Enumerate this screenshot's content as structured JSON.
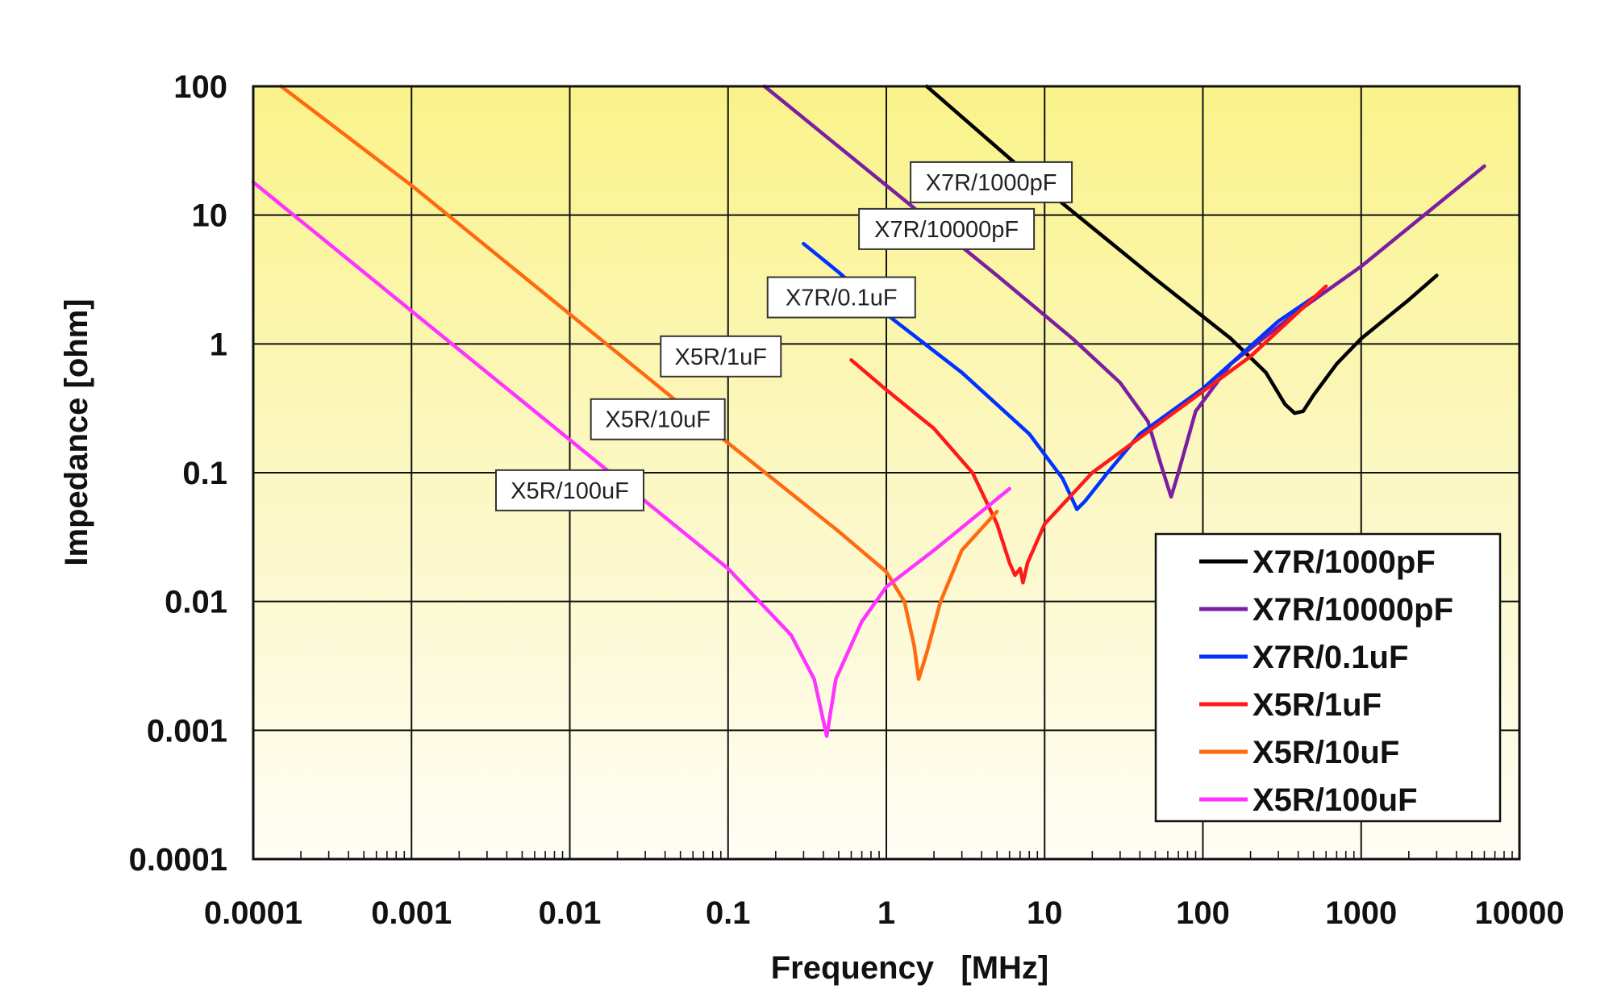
{
  "chart_data": {
    "type": "line",
    "scale": {
      "x": "log",
      "y": "log"
    },
    "xlabel": "Frequency   [MHz]",
    "ylabel": "Impedance [ohm]",
    "xlim": [
      0.0001,
      10000
    ],
    "ylim": [
      0.0001,
      100
    ],
    "x_ticks": [
      "0.0001",
      "0.001",
      "0.01",
      "0.1",
      "1",
      "10",
      "100",
      "1000",
      "10000"
    ],
    "y_ticks": [
      "0.0001",
      "0.001",
      "0.01",
      "0.1",
      "1",
      "10",
      "100"
    ],
    "grid": true,
    "legend_position": "lower-right",
    "series": [
      {
        "name": "X7R/1000pF",
        "color": "#000000",
        "points": [
          [
            1.8,
            100
          ],
          [
            10,
            16
          ],
          [
            50,
            3.2
          ],
          [
            150,
            1.1
          ],
          [
            250,
            0.6
          ],
          [
            330,
            0.34
          ],
          [
            380,
            0.29
          ],
          [
            430,
            0.3
          ],
          [
            500,
            0.4
          ],
          [
            700,
            0.7
          ],
          [
            1000,
            1.1
          ],
          [
            2000,
            2.2
          ],
          [
            3000,
            3.4
          ]
        ]
      },
      {
        "name": "X7R/10000pF",
        "color": "#7b1fa2",
        "points": [
          [
            0.17,
            100
          ],
          [
            1,
            17
          ],
          [
            5,
            3.4
          ],
          [
            15,
            1.1
          ],
          [
            30,
            0.5
          ],
          [
            45,
            0.25
          ],
          [
            55,
            0.11
          ],
          [
            63,
            0.065
          ],
          [
            70,
            0.1
          ],
          [
            90,
            0.3
          ],
          [
            150,
            0.7
          ],
          [
            400,
            1.8
          ],
          [
            1000,
            4
          ],
          [
            3000,
            12
          ],
          [
            6000,
            24
          ]
        ]
      },
      {
        "name": "X7R/0.1uF",
        "color": "#0033ff",
        "points": [
          [
            0.3,
            6
          ],
          [
            0.5,
            3.6
          ],
          [
            1,
            1.7
          ],
          [
            3,
            0.6
          ],
          [
            8,
            0.2
          ],
          [
            13,
            0.09
          ],
          [
            16,
            0.052
          ],
          [
            18,
            0.06
          ],
          [
            25,
            0.1
          ],
          [
            40,
            0.2
          ],
          [
            100,
            0.45
          ],
          [
            300,
            1.5
          ],
          [
            500,
            2.3
          ]
        ]
      },
      {
        "name": "X5R/1uF",
        "color": "#ff1a1a",
        "points": [
          [
            0.6,
            0.75
          ],
          [
            1,
            0.44
          ],
          [
            2,
            0.22
          ],
          [
            3.5,
            0.1
          ],
          [
            5,
            0.04
          ],
          [
            6,
            0.02
          ],
          [
            6.5,
            0.016
          ],
          [
            7,
            0.018
          ],
          [
            7.3,
            0.014
          ],
          [
            7.8,
            0.02
          ],
          [
            10,
            0.04
          ],
          [
            20,
            0.1
          ],
          [
            60,
            0.27
          ],
          [
            200,
            0.8
          ],
          [
            600,
            2.8
          ]
        ]
      },
      {
        "name": "X5R/10uF",
        "color": "#ff6a10",
        "points": [
          [
            0.00015,
            100
          ],
          [
            0.001,
            17
          ],
          [
            0.01,
            1.7
          ],
          [
            0.1,
            0.17
          ],
          [
            0.5,
            0.035
          ],
          [
            1,
            0.017
          ],
          [
            1.3,
            0.01
          ],
          [
            1.5,
            0.0045
          ],
          [
            1.6,
            0.0025
          ],
          [
            1.8,
            0.004
          ],
          [
            2.2,
            0.01
          ],
          [
            3,
            0.025
          ],
          [
            5,
            0.05
          ]
        ]
      },
      {
        "name": "X5R/100uF",
        "color": "#ff33ff",
        "points": [
          [
            0.0001,
            18
          ],
          [
            0.001,
            1.8
          ],
          [
            0.01,
            0.18
          ],
          [
            0.1,
            0.018
          ],
          [
            0.25,
            0.0055
          ],
          [
            0.35,
            0.0025
          ],
          [
            0.42,
            0.0009
          ],
          [
            0.48,
            0.0025
          ],
          [
            0.7,
            0.007
          ],
          [
            1,
            0.013
          ],
          [
            2,
            0.025
          ],
          [
            6,
            0.075
          ]
        ]
      }
    ],
    "annotations": [
      {
        "text": "X7R/1000pF",
        "series": 0,
        "x": 4.6,
        "y": 18
      },
      {
        "text": "X7R/10000pF",
        "series": 1,
        "x": 2.4,
        "y": 7.8
      },
      {
        "text": "X7R/0.1uF",
        "series": 2,
        "x": 0.52,
        "y": 2.3
      },
      {
        "text": "X5R/1uF",
        "series": 3,
        "x": 0.09,
        "y": 0.8
      },
      {
        "text": "X5R/10uF",
        "series": 4,
        "x": 0.036,
        "y": 0.26
      },
      {
        "text": "X5R/100uF",
        "series": 5,
        "x": 0.01,
        "y": 0.073
      }
    ]
  }
}
